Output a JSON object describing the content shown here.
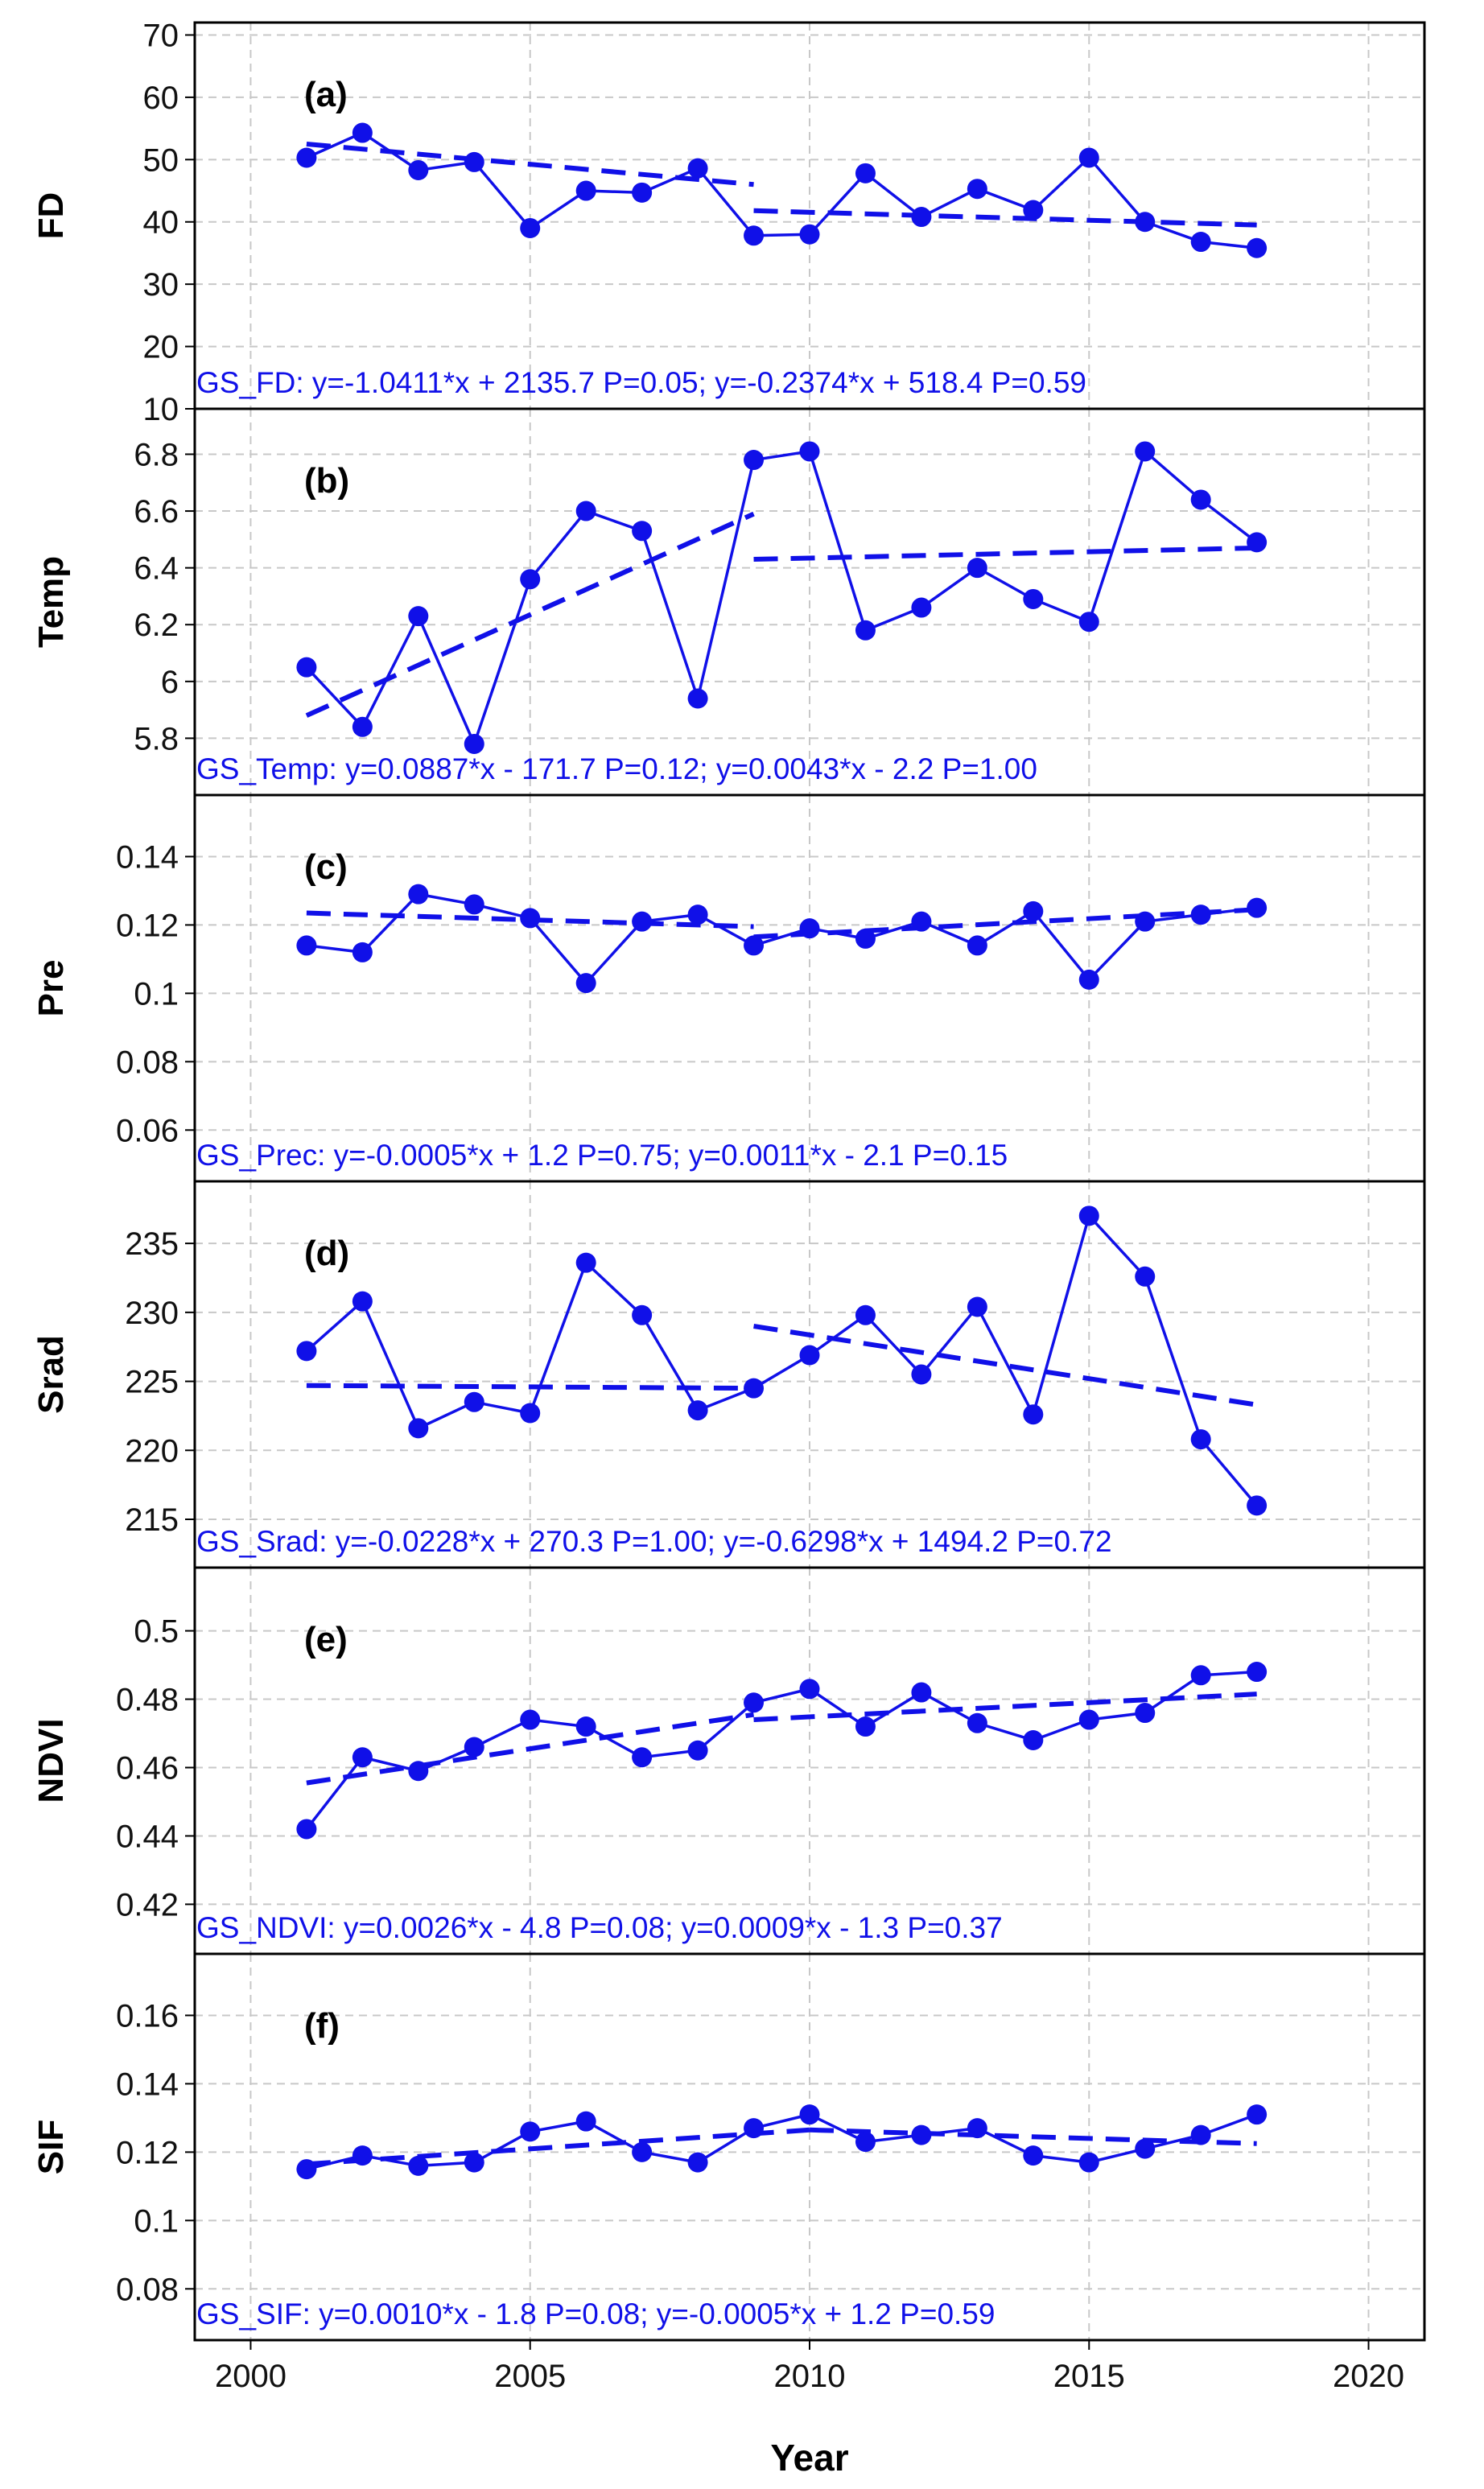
{
  "chart_data": {
    "type": "line",
    "xlabel": "Year",
    "xlim": [
      1999,
      2021
    ],
    "xticks": [
      2000,
      2005,
      2010,
      2015,
      2020
    ],
    "color": "#1010e8",
    "panels": [
      {
        "label": "(a)",
        "ylabel": "FD",
        "ylim": [
          10,
          72
        ],
        "yticks": [
          10,
          20,
          30,
          40,
          50,
          60,
          70
        ],
        "ytick_labels": [
          "10",
          "20",
          "30",
          "40",
          "50",
          "60",
          "70"
        ],
        "x": [
          2001,
          2002,
          2003,
          2004,
          2005,
          2006,
          2007,
          2008,
          2009,
          2010,
          2011,
          2012,
          2013,
          2014,
          2015,
          2016,
          2017,
          2018
        ],
        "values": [
          50.3,
          54.3,
          48.3,
          49.6,
          39.0,
          45.0,
          44.7,
          48.6,
          37.8,
          38.0,
          47.8,
          40.8,
          45.3,
          41.9,
          50.3,
          40.0,
          36.8,
          35.8
        ],
        "trend1": {
          "x": [
            2001,
            2009
          ],
          "y": [
            52.5,
            46.0
          ]
        },
        "trend2": {
          "x": [
            2009,
            2018
          ],
          "y": [
            41.8,
            39.5
          ]
        },
        "equation": "GS_FD: y=-1.0411*x + 2135.7 P=0.05;  y=-0.2374*x + 518.4 P=0.59"
      },
      {
        "label": "(b)",
        "ylabel": "Temp",
        "ylim": [
          5.6,
          6.96
        ],
        "yticks": [
          5.8,
          6.0,
          6.2,
          6.4,
          6.6,
          6.8
        ],
        "ytick_labels": [
          "5.8",
          "6",
          "6.2",
          "6.4",
          "6.6",
          "6.8"
        ],
        "x": [
          2001,
          2002,
          2003,
          2004,
          2005,
          2006,
          2007,
          2008,
          2009,
          2010,
          2011,
          2012,
          2013,
          2014,
          2015,
          2016,
          2017,
          2018
        ],
        "values": [
          6.05,
          5.84,
          6.23,
          5.78,
          6.36,
          6.6,
          6.53,
          5.94,
          6.78,
          6.81,
          6.18,
          6.26,
          6.4,
          6.29,
          6.21,
          6.81,
          6.64,
          6.49
        ],
        "trend1": {
          "x": [
            2001,
            2009
          ],
          "y": [
            5.88,
            6.59
          ]
        },
        "trend2": {
          "x": [
            2009,
            2018
          ],
          "y": [
            6.43,
            6.47
          ]
        },
        "equation": "GS_Temp: y=0.0887*x - 171.7 P=0.12;  y=0.0043*x -  2.2 P=1.00"
      },
      {
        "label": "(c)",
        "ylabel": "Pre",
        "ylim": [
          0.045,
          0.158
        ],
        "yticks": [
          0.06,
          0.08,
          0.1,
          0.12,
          0.14
        ],
        "ytick_labels": [
          "0.06",
          "0.08",
          "0.1",
          "0.12",
          "0.14"
        ],
        "x": [
          2001,
          2002,
          2003,
          2004,
          2005,
          2006,
          2007,
          2008,
          2009,
          2010,
          2011,
          2012,
          2013,
          2014,
          2015,
          2016,
          2017,
          2018
        ],
        "values": [
          0.114,
          0.112,
          0.129,
          0.126,
          0.122,
          0.103,
          0.121,
          0.123,
          0.114,
          0.119,
          0.116,
          0.121,
          0.114,
          0.124,
          0.104,
          0.121,
          0.123,
          0.125
        ],
        "trend1": {
          "x": [
            2001,
            2009
          ],
          "y": [
            0.1235,
            0.1195
          ]
        },
        "trend2": {
          "x": [
            2009,
            2018
          ],
          "y": [
            0.1165,
            0.1245
          ]
        },
        "equation": "GS_Prec: y=-0.0005*x +  1.2 P=0.75;  y=0.0011*x -  2.1 P=0.15"
      },
      {
        "label": "(d)",
        "ylabel": "Srad",
        "ylim": [
          211.5,
          239.5
        ],
        "yticks": [
          215,
          220,
          225,
          230,
          235
        ],
        "ytick_labels": [
          "215",
          "220",
          "225",
          "230",
          "235"
        ],
        "x": [
          2001,
          2002,
          2003,
          2004,
          2005,
          2006,
          2007,
          2008,
          2009,
          2010,
          2011,
          2012,
          2013,
          2014,
          2015,
          2016,
          2017,
          2018
        ],
        "values": [
          227.2,
          230.8,
          221.6,
          223.5,
          222.7,
          233.6,
          229.8,
          222.9,
          224.5,
          226.9,
          229.8,
          225.5,
          230.4,
          222.6,
          237.0,
          232.6,
          220.8,
          216.0
        ],
        "trend1": {
          "x": [
            2001,
            2009
          ],
          "y": [
            224.7,
            224.5
          ]
        },
        "trend2": {
          "x": [
            2009,
            2018
          ],
          "y": [
            229.0,
            223.3
          ]
        },
        "equation": "GS_Srad: y=-0.0228*x + 270.3 P=1.00;  y=-0.6298*x + 1494.2 P=0.72"
      },
      {
        "label": "(e)",
        "ylabel": "NDVI",
        "ylim": [
          0.4055,
          0.5185
        ],
        "yticks": [
          0.42,
          0.44,
          0.46,
          0.48,
          0.5
        ],
        "ytick_labels": [
          "0.42",
          "0.44",
          "0.46",
          "0.48",
          "0.5"
        ],
        "x": [
          2001,
          2002,
          2003,
          2004,
          2005,
          2006,
          2007,
          2008,
          2009,
          2010,
          2011,
          2012,
          2013,
          2014,
          2015,
          2016,
          2017,
          2018
        ],
        "values": [
          0.442,
          0.463,
          0.459,
          0.466,
          0.474,
          0.472,
          0.463,
          0.465,
          0.479,
          0.483,
          0.472,
          0.482,
          0.473,
          0.468,
          0.474,
          0.476,
          0.487,
          0.488
        ],
        "trend1": {
          "x": [
            2001,
            2009
          ],
          "y": [
            0.4555,
            0.4755
          ]
        },
        "trend2": {
          "x": [
            2009,
            2018
          ],
          "y": [
            0.474,
            0.4815
          ]
        },
        "equation": "GS_NDVI: y=0.0026*x -  4.8 P=0.08;  y=0.0009*x -  1.3 P=0.37"
      },
      {
        "label": "(f)",
        "ylabel": "SIF",
        "ylim": [
          0.065,
          0.178
        ],
        "yticks": [
          0.08,
          0.1,
          0.12,
          0.14,
          0.16
        ],
        "ytick_labels": [
          "0.08",
          "0.1",
          "0.12",
          "0.14",
          "0.16"
        ],
        "x": [
          2001,
          2002,
          2003,
          2004,
          2005,
          2006,
          2007,
          2008,
          2009,
          2010,
          2011,
          2012,
          2013,
          2014,
          2015,
          2016,
          2017,
          2018
        ],
        "values": [
          0.115,
          0.119,
          0.116,
          0.117,
          0.126,
          0.129,
          0.12,
          0.117,
          0.127,
          0.131,
          0.123,
          0.125,
          0.127,
          0.119,
          0.117,
          0.121,
          0.125,
          0.131
        ],
        "trend1": {
          "x": [
            2001,
            2010
          ],
          "y": [
            0.1165,
            0.1265
          ]
        },
        "trend2": {
          "x": [
            2010,
            2018
          ],
          "y": [
            0.1265,
            0.1225
          ]
        },
        "equation": "GS_SIF: y=0.0010*x -  1.8 P=0.08;  y=-0.0005*x +  1.2 P=0.59"
      }
    ]
  }
}
